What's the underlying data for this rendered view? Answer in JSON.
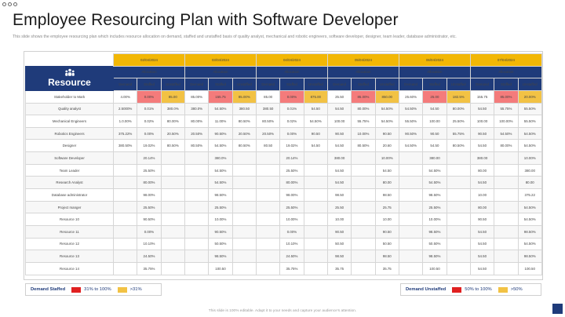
{
  "title": "Employee Resourcing Plan with Software Developer",
  "subtitle": "This slide shows the employee resourcing plan which includes resource allocation on demand, staffed and unstaffed basis of quality analyst, mechanical and robotic engineers, software developer, designer, team leader, database administrator, etc.",
  "table": {
    "resource_header": "Resource",
    "allocation_label": "Allocation",
    "sub_headers": [
      "Demand",
      "Staffed",
      "Unstaffed"
    ],
    "dates": [
      "02/04/2024",
      "03/04/2024",
      "04/04/2024",
      "05/04/2024",
      "06/04/2024",
      "07/04/2024"
    ],
    "rows": [
      {
        "name": "Stakeholder to Mark",
        "cells": [
          "4.00%",
          "0.00%",
          "85.00",
          "85.00%",
          "155.75",
          "85.00%",
          "85.00",
          "0.00%",
          "875.00",
          "25.50",
          "85.00%",
          "850.00",
          "25.60%",
          "25.00",
          "182.5%",
          "155.75",
          "85.00%",
          "20.00%"
        ],
        "flags": [
          "",
          "r",
          "y",
          "",
          "r",
          "y",
          "",
          "r",
          "y",
          "",
          "r",
          "y",
          "",
          "r",
          "y",
          "",
          "r",
          "y"
        ]
      },
      {
        "name": "Quality analyst",
        "cells": [
          "2.5000%",
          "0.01%",
          "380.0%",
          "380.0%",
          "54.50%",
          "380.50",
          "380.50",
          "0.01%",
          "54.50",
          "54.50",
          "80.00%",
          "54.50%",
          "54.50%",
          "54.50",
          "80.00%",
          "54.50",
          "55.75%",
          "55.50%"
        ],
        "flags": []
      },
      {
        "name": "Mechanical Engineers",
        "cells": [
          "1.0.00%",
          "0.02%",
          "80.00%",
          "80.00%",
          "11.00%",
          "80.50%",
          "80.50%",
          "0.02%",
          "54.50%",
          "100.00",
          "55.75%",
          "54.50%",
          "55.50%",
          "100.00",
          "25.50%",
          "100.00",
          "100.00%",
          "55.50%"
        ],
        "flags": []
      },
      {
        "name": "Robotics Engineers",
        "cells": [
          "375.22%",
          "0.00%",
          "20.50%",
          "20.50%",
          "90.50%",
          "20.50%",
          "20.50%",
          "0.00%",
          "90.50",
          "90.50",
          "10.00%",
          "90.50",
          "90.50%",
          "90.50",
          "55.75%",
          "90.50",
          "54.50%",
          "54.50%"
        ],
        "flags": []
      },
      {
        "name": "Designer",
        "cells": [
          "380.50%",
          "19.02%",
          "80.50%",
          "80.50%",
          "54.50%",
          "80.50%",
          "80.50",
          "19.02%",
          "54.50",
          "54.50",
          "80.50%",
          "20.60",
          "54.50%",
          "54.50",
          "80.50%",
          "54.50",
          "80.00%",
          "54.50%"
        ],
        "flags": []
      },
      {
        "name": "Software Developer",
        "cells": [
          "",
          "20.14%",
          "",
          "",
          "380.0%",
          "",
          "",
          "20.14%",
          "",
          "380.00",
          "",
          "10.00%",
          "",
          "380.00",
          "",
          "380.00",
          "",
          "10.00%"
        ],
        "flags": []
      },
      {
        "name": "Team Leader",
        "cells": [
          "",
          "25.50%",
          "",
          "",
          "54.50%",
          "",
          "",
          "25.50%",
          "",
          "54.50",
          "",
          "54.50",
          "",
          "54.50%",
          "",
          "80.00",
          "",
          "380.00"
        ],
        "flags": []
      },
      {
        "name": "Research Analyst",
        "cells": [
          "",
          "80.00%",
          "",
          "",
          "54.50%",
          "",
          "",
          "80.00%",
          "",
          "54.50",
          "",
          "80.00",
          "",
          "54.50%",
          "",
          "54.50",
          "",
          "80.00"
        ],
        "flags": []
      },
      {
        "name": "Database administrator",
        "cells": [
          "",
          "98.00%",
          "",
          "",
          "98.50%",
          "",
          "",
          "98.00%",
          "",
          "98.50",
          "",
          "98.50",
          "",
          "98.50%",
          "",
          "10.00",
          "",
          "375.22"
        ],
        "flags": []
      },
      {
        "name": "Project manger",
        "cells": [
          "",
          "25.50%",
          "",
          "",
          "25.50%",
          "",
          "",
          "25.50%",
          "",
          "25.50",
          "",
          "25.75",
          "",
          "25.50%",
          "",
          "80.00",
          "",
          "54.50%"
        ],
        "flags": []
      },
      {
        "name": "Resource 10",
        "cells": [
          "",
          "90.50%",
          "",
          "",
          "10.00%",
          "",
          "",
          "10.00%",
          "",
          "10.00",
          "",
          "10.00",
          "",
          "10.00%",
          "",
          "90.50",
          "",
          "54.50%"
        ],
        "flags": []
      },
      {
        "name": "Resource 11",
        "cells": [
          "",
          "0.00%",
          "",
          "",
          "90.50%",
          "",
          "",
          "0.00%",
          "",
          "90.50",
          "",
          "90.50",
          "",
          "98.50%",
          "",
          "54.50",
          "",
          "98.50%"
        ],
        "flags": []
      },
      {
        "name": "Resource 12",
        "cells": [
          "",
          "10.10%",
          "",
          "",
          "50.50%",
          "",
          "",
          "10.10%",
          "",
          "50.50",
          "",
          "50.50",
          "",
          "50.50%",
          "",
          "54.50",
          "",
          "54.50%"
        ],
        "flags": []
      },
      {
        "name": "Resource 13",
        "cells": [
          "",
          "24.50%",
          "",
          "",
          "98.50%",
          "",
          "",
          "24.50%",
          "",
          "98.50",
          "",
          "98.50",
          "",
          "98.50%",
          "",
          "54.50",
          "",
          "98.50%"
        ],
        "flags": []
      },
      {
        "name": "Resource 14",
        "cells": [
          "",
          "35.75%",
          "",
          "",
          "100.50",
          "",
          "",
          "35.75%",
          "",
          "35.75",
          "",
          "35.75",
          "",
          "100.50",
          "",
          "54.50",
          "",
          "100.50"
        ],
        "flags": []
      }
    ]
  },
  "legend_left": {
    "label": "Demand Staffed",
    "range1": "31% to 100%",
    "range2": ">31%"
  },
  "legend_right": {
    "label": "Demand Unstaffed",
    "range1": "50% to 100%",
    "range2": ">50%"
  },
  "footer": "This slide is 100% editable. Adapt it to your needs and capture your audience's attention.",
  "colors": {
    "navy": "#1f3b7a",
    "gold": "#f2b705",
    "red": "#f47b7b",
    "yellow": "#f2c244"
  }
}
